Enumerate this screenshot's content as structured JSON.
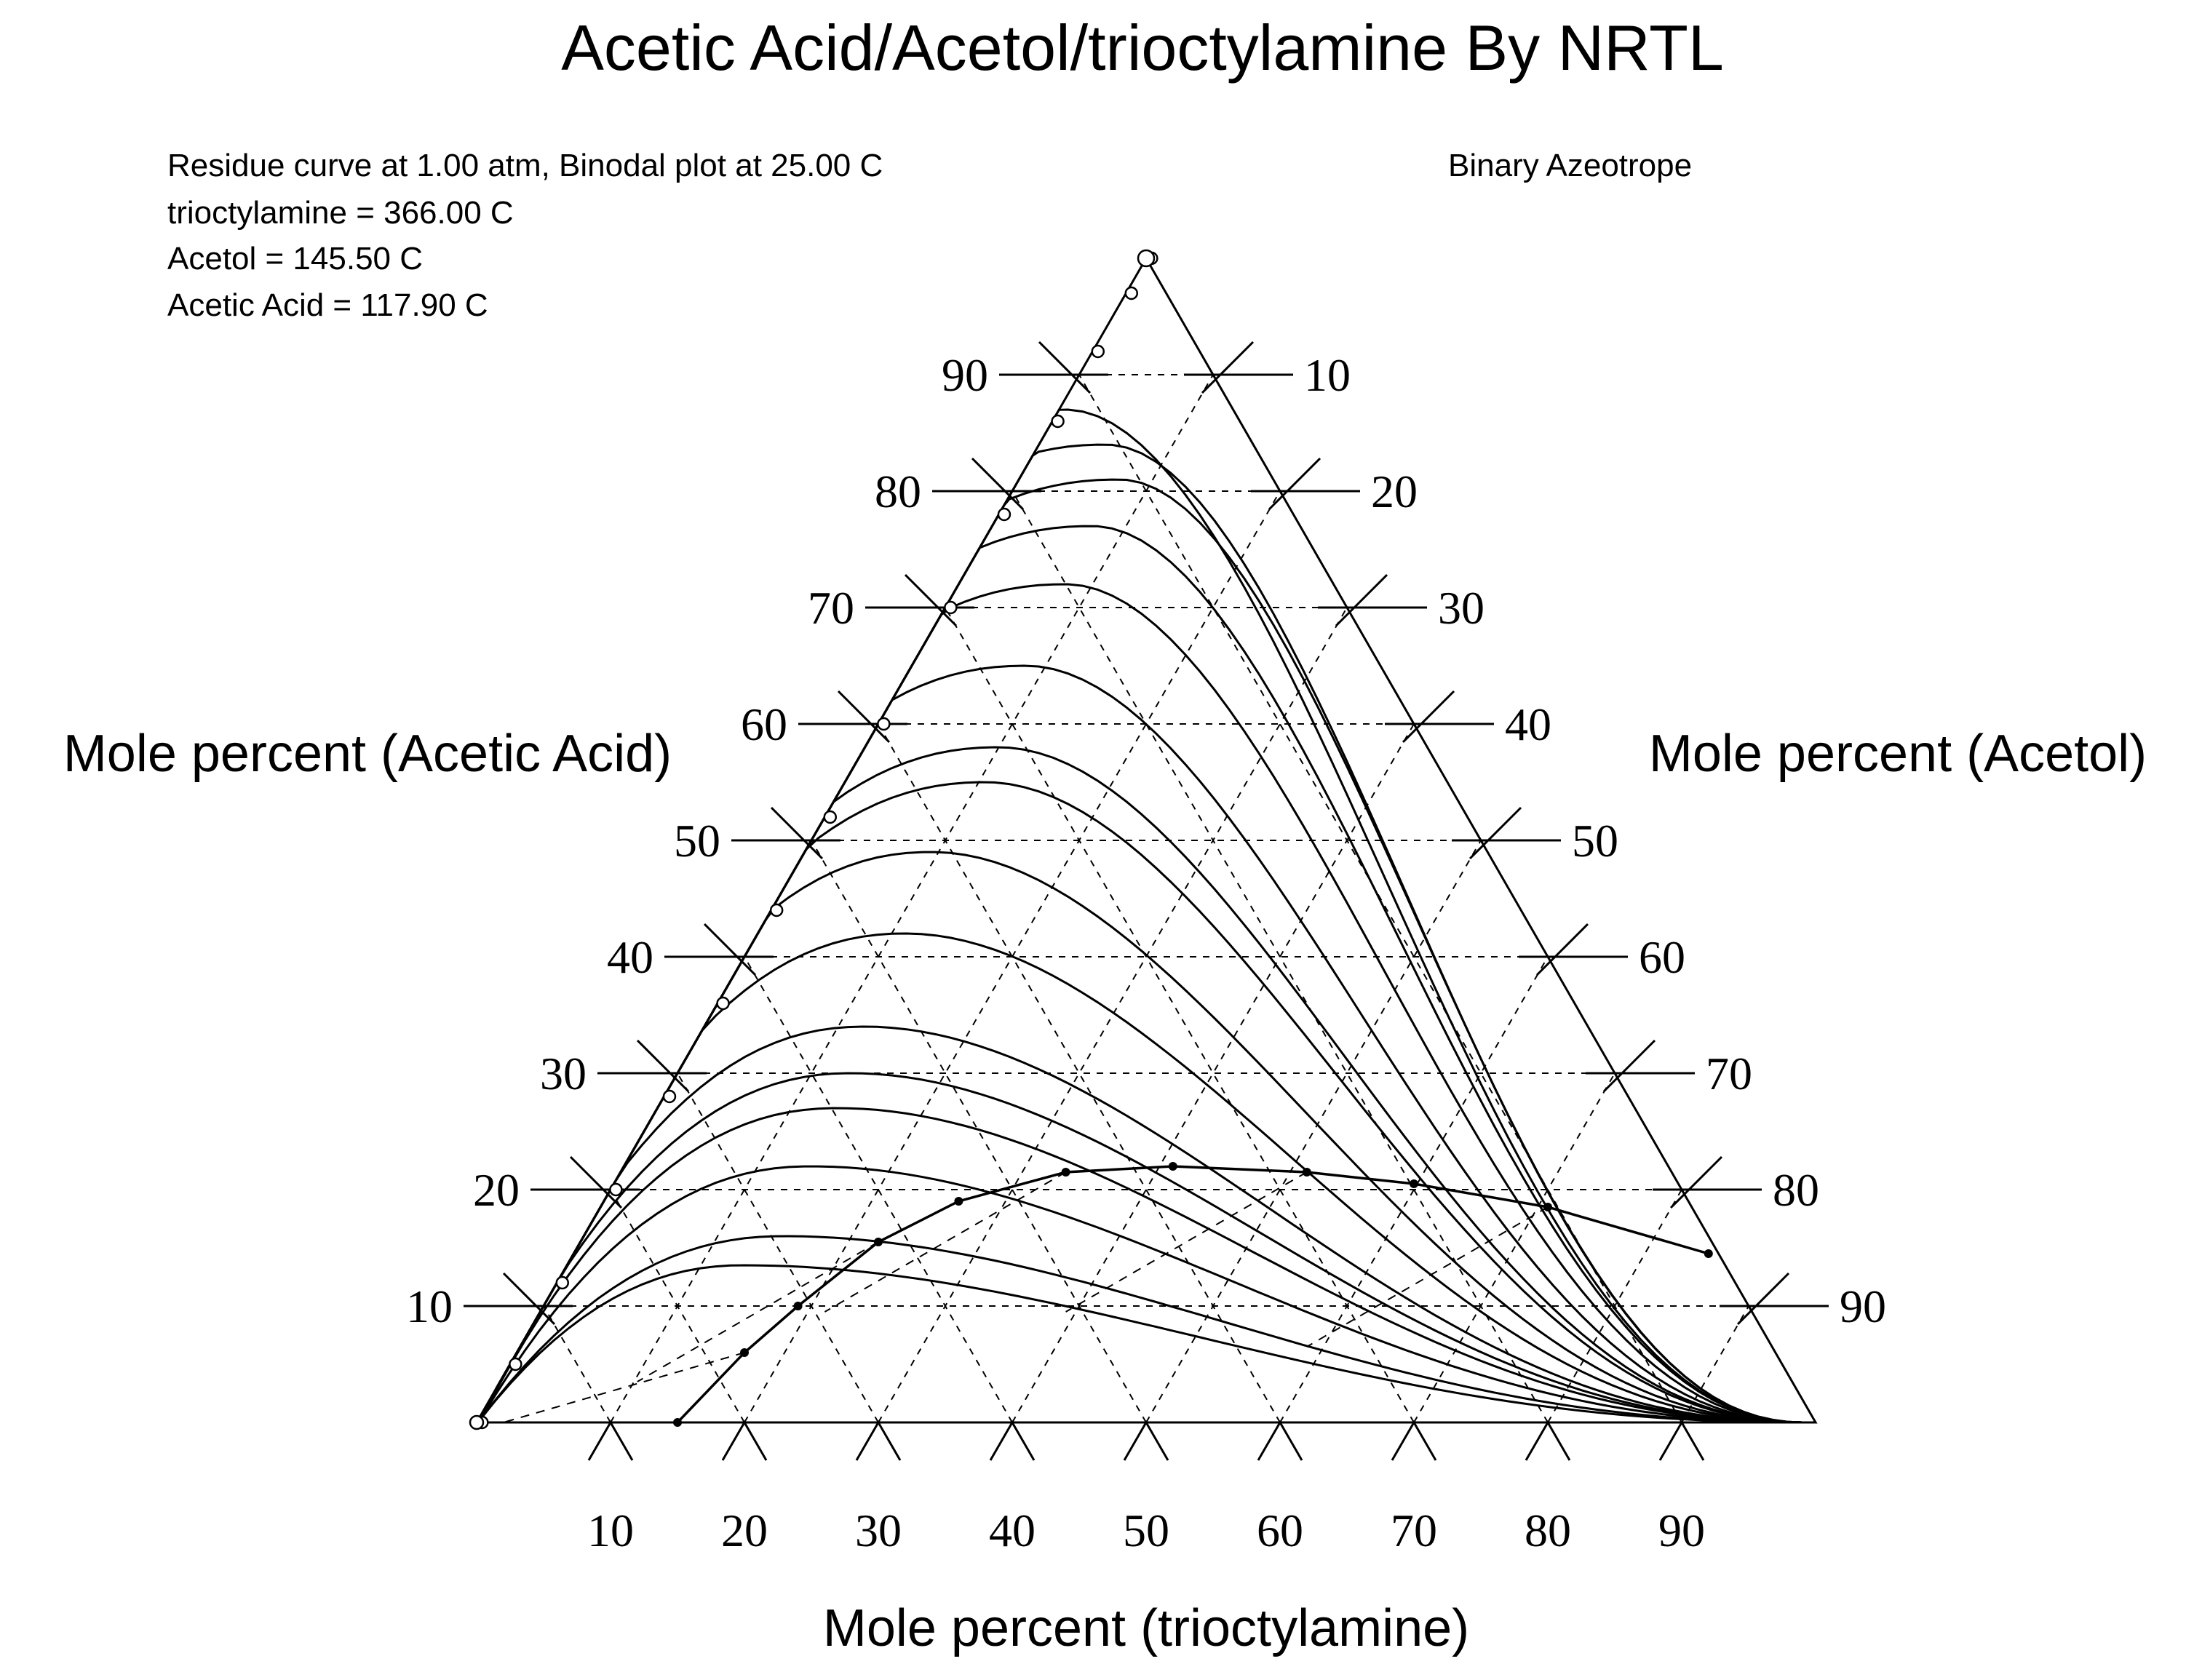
{
  "chart_data": {
    "type": "ternary",
    "title": "Acetic Acid/Acetol/trioctylamine By NRTL",
    "info_lines": [
      "Residue curve at      1.00 atm, Binodal plot at   25.00 C",
      "trioctylamine =  366.00 C",
      "Acetol =  145.50 C",
      "Acetic Acid =  117.90 C"
    ],
    "legend_note": "Binary Azeotrope",
    "components": {
      "left_axis": "Mole percent (Acetic Acid)",
      "right_axis": "Mole percent (Acetol)",
      "bottom_axis": "Mole percent (trioctylamine)"
    },
    "ticks": {
      "left": [
        "10",
        "20",
        "30",
        "40",
        "50",
        "60",
        "70",
        "80",
        "90"
      ],
      "right": [
        "90",
        "80",
        "70",
        "60",
        "50",
        "40",
        "30",
        "20",
        "10"
      ],
      "bottom": [
        "10",
        "20",
        "30",
        "40",
        "50",
        "60",
        "70",
        "80",
        "90"
      ]
    },
    "grid": true,
    "residue_curves": [
      {
        "peak_x": 0.44,
        "peak_y": 0.87
      },
      {
        "peak_x": 0.47,
        "peak_y": 0.84
      },
      {
        "peak_x": 0.48,
        "peak_y": 0.81
      },
      {
        "peak_x": 0.46,
        "peak_y": 0.77
      },
      {
        "peak_x": 0.44,
        "peak_y": 0.72
      },
      {
        "peak_x": 0.41,
        "peak_y": 0.65
      },
      {
        "peak_x": 0.39,
        "peak_y": 0.58
      },
      {
        "peak_x": 0.38,
        "peak_y": 0.55
      },
      {
        "peak_x": 0.34,
        "peak_y": 0.49
      },
      {
        "peak_x": 0.32,
        "peak_y": 0.42
      },
      {
        "peak_x": 0.29,
        "peak_y": 0.34
      },
      {
        "peak_x": 0.28,
        "peak_y": 0.3
      },
      {
        "peak_x": 0.27,
        "peak_y": 0.27
      },
      {
        "peak_x": 0.25,
        "peak_y": 0.22
      },
      {
        "peak_x": 0.23,
        "peak_y": 0.16
      },
      {
        "peak_x": 0.2,
        "peak_y": 0.135
      }
    ],
    "binodal_curve": [
      [
        0.15,
        0.0
      ],
      [
        0.2,
        0.06
      ],
      [
        0.24,
        0.1
      ],
      [
        0.3,
        0.155
      ],
      [
        0.36,
        0.19
      ],
      [
        0.44,
        0.215
      ],
      [
        0.52,
        0.22
      ],
      [
        0.62,
        0.215
      ],
      [
        0.7,
        0.205
      ],
      [
        0.8,
        0.185
      ],
      [
        0.92,
        0.145
      ]
    ]
  }
}
